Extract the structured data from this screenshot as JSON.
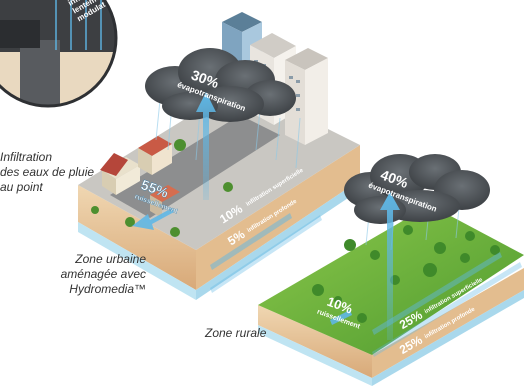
{
  "magnifier": {
    "label": "infiltration\nlentement\nmodulation",
    "caption_lines": [
      "Infiltration",
      "des eaux de pluie",
      "au point"
    ]
  },
  "urban": {
    "evapotranspiration": {
      "percent": "30%",
      "label": "évapotranspiration"
    },
    "runoff": {
      "percent": "55%",
      "label": "ruissellement"
    },
    "shallow_infiltration": {
      "percent": "10%",
      "label": "infiltration superficielle"
    },
    "deep_infiltration": {
      "percent": "5%",
      "label": "infiltration profonde"
    },
    "caption_lines": [
      "Zone urbaine",
      "aménagée avec",
      "Hydromedia™"
    ]
  },
  "rural": {
    "evapotranspiration": {
      "percent": "40%",
      "label": "évapotranspiration"
    },
    "runoff": {
      "percent": "10%",
      "label": "ruissellement"
    },
    "shallow_infiltration": {
      "percent": "25%",
      "label": "infiltration superficielle"
    },
    "deep_infiltration": {
      "percent": "25%",
      "label": "infiltration profonde"
    },
    "caption": "Zone rurale"
  },
  "colors": {
    "ground_top_urban": "#c9c7c2",
    "grass": "#6cb33f",
    "soil": "#e8c9a0",
    "soil_dark": "#d4a573",
    "water": "#bfe4f2",
    "cloud": "#4e5358",
    "arrow": "#5fb7e5"
  }
}
